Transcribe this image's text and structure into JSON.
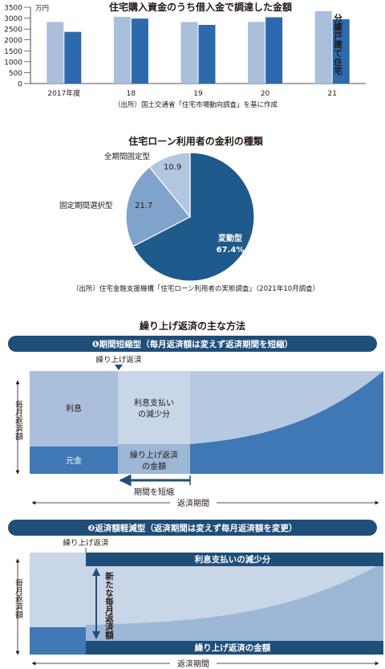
{
  "colors": {
    "light_bar": "#a9bfdc",
    "dark_bar": "#2c6aad",
    "navy": "#1f4e79",
    "pie_dark": "#1e5a8c",
    "pie_mid": "#7fa3cb",
    "pie_light": "#b2c6e0",
    "panel_band": "#dfe7f1",
    "area_light": "#c8d6e8",
    "area_mid": "#9db7d6",
    "area_dark": "#3f78b4"
  },
  "chart_data": [
    {
      "type": "bar",
      "title": "住宅購入資金のうち借入金で調達した金額",
      "unit": "万円",
      "categories": [
        "2017年度",
        "18",
        "19",
        "20",
        "21"
      ],
      "ylim": [
        0,
        3500
      ],
      "y_ticks": [
        "3500",
        "3000",
        "2500",
        "2000",
        "1500",
        "1000",
        "500",
        "0"
      ],
      "series": [
        {
          "name": "分譲戸建て住宅",
          "values": [
            2820,
            3060,
            2820,
            2830,
            3320
          ]
        },
        {
          "name": "分譲マンション",
          "values": [
            2370,
            2980,
            2690,
            3040,
            2950
          ]
        }
      ],
      "source": "（出所）国土交通省「住宅市場動向調査」を基に作成",
      "legend_placement": "inside-right"
    },
    {
      "type": "pie",
      "title": "住宅ローン利用者の金利の種類",
      "slices": [
        {
          "label": "変動型",
          "value": 67.4,
          "value_text": "67.4%"
        },
        {
          "label": "固定期間選択型",
          "value": 21.7,
          "value_text": "21.7"
        },
        {
          "label": "全期間固定型",
          "value": 10.9,
          "value_text": "10.9"
        }
      ],
      "source": "（出所）住宅金融支援機構「住宅ローン利用者の実態調査」（2021年10月調査）"
    }
  ],
  "diagram": {
    "title": "繰り上げ返済の主な方法",
    "method1": {
      "header": "❶期間短縮型（毎月返済額は変えず返済期間を短縮）",
      "marker": "繰り上げ返済",
      "y_axis": "毎月返済額",
      "interest": "利息",
      "interest_reduction": [
        "利息支払い",
        "の減少分"
      ],
      "principal": "元金",
      "prepaid_amount": [
        "繰り上げ返済",
        "の金額"
      ],
      "shorten": "期間を短縮",
      "period": "返済期間"
    },
    "method2": {
      "header": "❷返済額軽減型（返済期間は変えず毎月返済額を変更）",
      "marker": "繰り上げ返済",
      "y_axis": "毎月返済額",
      "interest_reduction": "利息支払いの減少分",
      "new_payment": "新たな毎月返済額",
      "prepaid_amount": "繰り上げ返済の金額",
      "period": "返済期間"
    }
  }
}
